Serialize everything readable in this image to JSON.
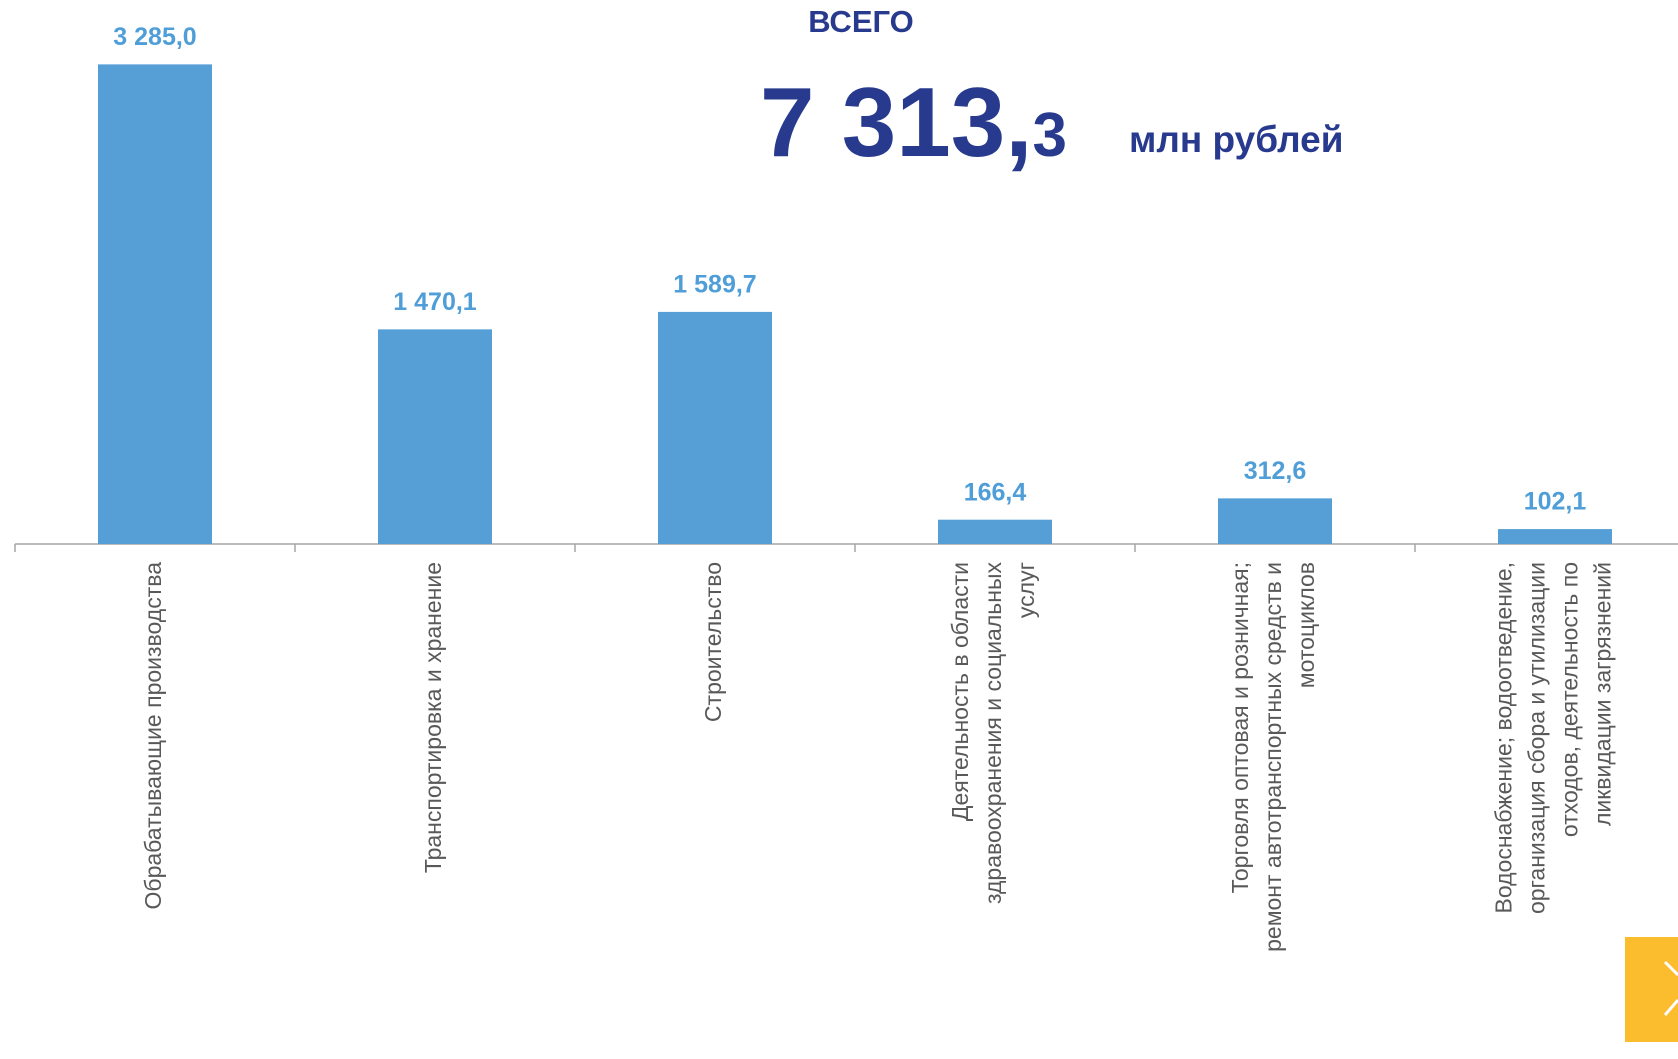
{
  "chart_data": {
    "type": "bar",
    "title": "ВСЕГО",
    "total_main": "7 313,",
    "total_decimal": "3",
    "unit": "млн рублей",
    "categories": [
      "Обрабатывающие производства",
      "Транспортировка и хранение",
      "Строительство",
      "Деятельность в области\nздравоохранения и социальных\nуслуг",
      "Торговля оптовая и розничная;\nремонт автотранспортных средств и\nмотоциклов",
      "Водоснабжение; водоотведение,\nорганизация сбора и утилизации\nотходов, деятельность по\nликвидации загрязнений"
    ],
    "values": [
      3285.0,
      1470.1,
      1589.7,
      166.4,
      312.6,
      102.1
    ],
    "value_labels": [
      "3 285,0",
      "1 470,1",
      "1 589,7",
      "166,4",
      "312,6",
      "102,1"
    ],
    "color": "#559fd6",
    "ylim": [
      0,
      3500
    ]
  }
}
